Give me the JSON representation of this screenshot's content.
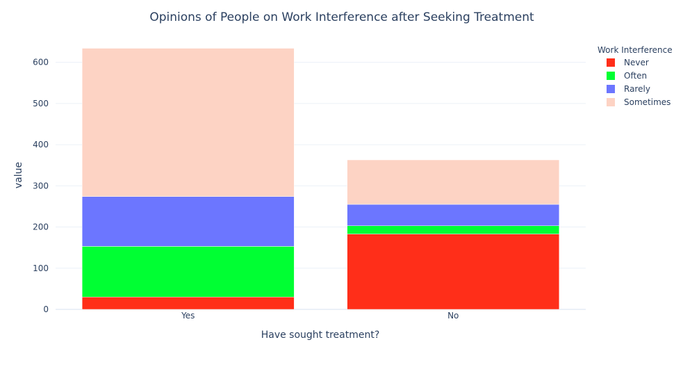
{
  "chart_data": {
    "type": "bar",
    "barmode": "stack",
    "title": "Opinions of People on Work Interference after Seeking Treatment",
    "xlabel": "Have sought treatment?",
    "ylabel": "value",
    "categories": [
      "Yes",
      "No"
    ],
    "ylim": [
      0,
      650
    ],
    "yticks": [
      0,
      100,
      200,
      300,
      400,
      500,
      600
    ],
    "legend_title": "Work Interference",
    "legend_position": "top-right",
    "grid": true,
    "series": [
      {
        "name": "Never",
        "color": "#ff2e19",
        "values": [
          30,
          183
        ]
      },
      {
        "name": "Often",
        "color": "#00ff33",
        "values": [
          123,
          20
        ]
      },
      {
        "name": "Rarely",
        "color": "#6c76ff",
        "values": [
          121,
          52
        ]
      },
      {
        "name": "Sometimes",
        "color": "#fdd3c4",
        "values": [
          360,
          108
        ]
      }
    ]
  }
}
